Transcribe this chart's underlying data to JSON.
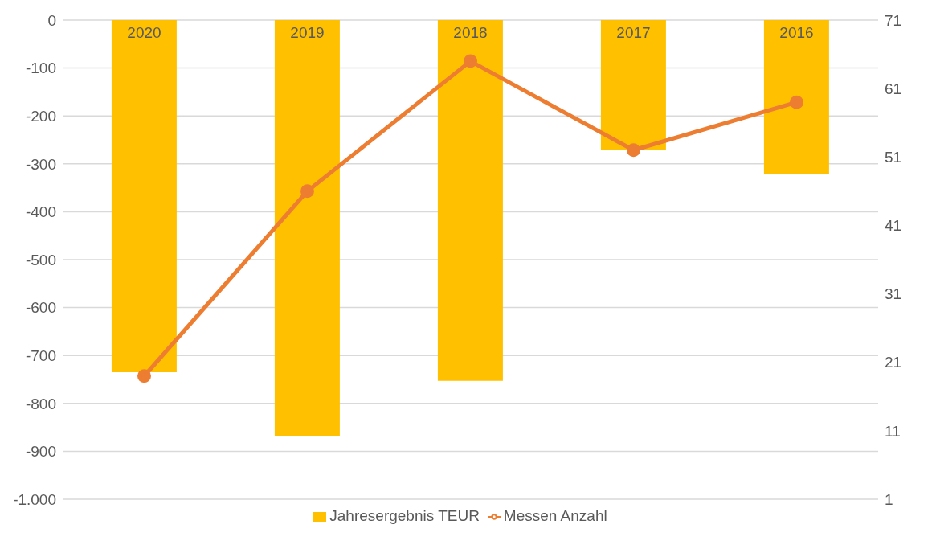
{
  "chart_data": {
    "type": "bar",
    "categories": [
      "2020",
      "2019",
      "2018",
      "2017",
      "2016"
    ],
    "series": [
      {
        "name": "Jahresergebnis TEUR",
        "color": "#ffc000",
        "values": [
          -735,
          -868,
          -753,
          -270,
          -322
        ]
      },
      {
        "name": "Messen Anzahl",
        "type": "line",
        "axis": "y2",
        "color": "#ed7d31",
        "values": [
          19,
          46,
          65,
          52,
          59
        ]
      }
    ],
    "ylim": [
      -1000,
      0
    ],
    "yticks": [
      {
        "value": -1000,
        "label": "-1.000"
      },
      -900,
      -800,
      -700,
      -600,
      -500,
      -400,
      -300,
      -200,
      -100,
      0
    ],
    "y2lim": [
      1,
      71
    ],
    "y2ticks": [
      1,
      11,
      21,
      31,
      41,
      51,
      61,
      71
    ],
    "grid": "y",
    "legend": "bottom",
    "marker": "circle",
    "line_style": "solid"
  }
}
